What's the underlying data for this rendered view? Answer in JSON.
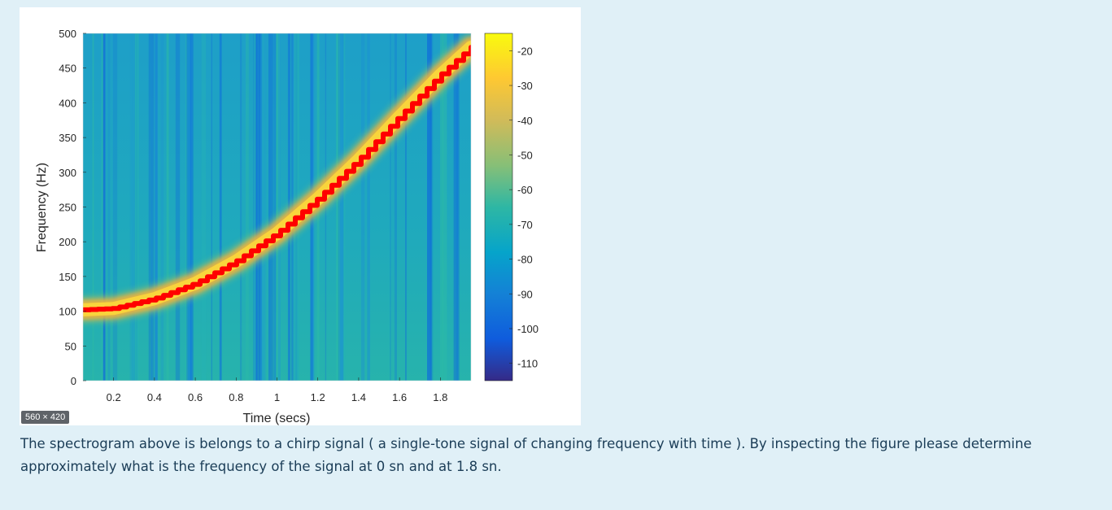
{
  "figure": {
    "size_badge": "560 × 420"
  },
  "question": {
    "line1": "The spectrogram above is belongs to a chirp signal ( a single-tone signal of changing frequency with time ). By inspecting the figure please determine",
    "line2": "approximately what is the frequency of the signal  at 0  sn and at 1.8 sn."
  },
  "chart_data": {
    "type": "heatmap",
    "xlabel": "Time (secs)",
    "ylabel": "Frequency (Hz)",
    "xlim": [
      0.05,
      1.95
    ],
    "ylim": [
      0,
      500
    ],
    "xticks": [
      "0.2",
      "0.4",
      "0.6",
      "0.8",
      "1",
      "1.2",
      "1.4",
      "1.6",
      "1.8"
    ],
    "yticks": [
      "0",
      "50",
      "100",
      "150",
      "200",
      "250",
      "300",
      "350",
      "400",
      "450",
      "500"
    ],
    "colorbar": {
      "ticks": [
        "-20",
        "-30",
        "-40",
        "-50",
        "-60",
        "-70",
        "-80",
        "-90",
        "-100",
        "-110"
      ],
      "range": [
        -115,
        -15
      ],
      "colormap": "parula"
    },
    "ridge": {
      "name": "",
      "color": "#ff0000",
      "x": [
        0.05,
        0.2,
        0.4,
        0.6,
        0.8,
        1.0,
        1.2,
        1.4,
        1.6,
        1.8,
        1.95
      ],
      "y": [
        102,
        104,
        118,
        140,
        172,
        212,
        262,
        318,
        380,
        440,
        480
      ]
    },
    "colors": {
      "background": "#19a9b8",
      "ridge_glow": "#f9d43c",
      "ridge_core": "#ff0000"
    }
  }
}
